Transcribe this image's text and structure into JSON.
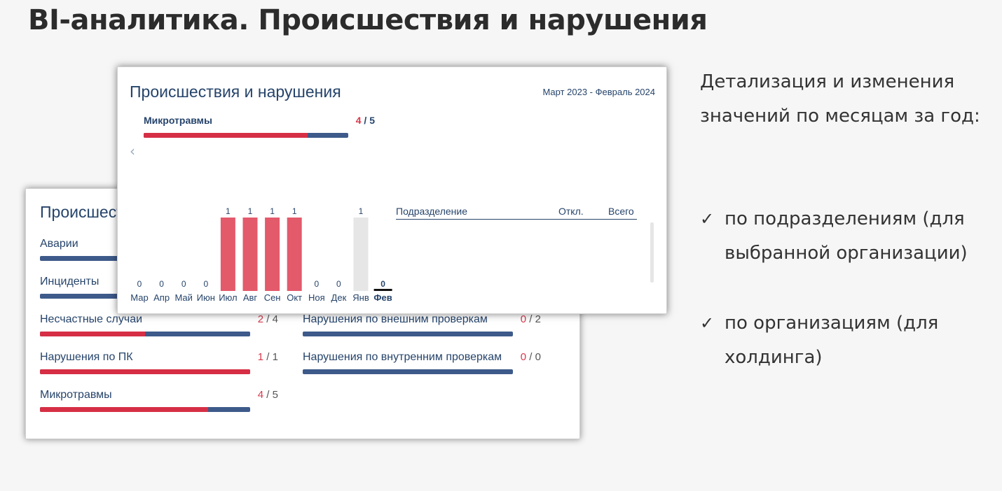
{
  "slide": {
    "title": "BI-аналитика. Происшествия и нарушения",
    "description": "Детализация и изменения значений по месяцам за год:",
    "bullets": [
      {
        "check": "✓",
        "text": "по подразделениям (для выбранной организации)"
      },
      {
        "check": "✓",
        "text": "по организациям (для холдинга)"
      }
    ]
  },
  "back_card": {
    "title": "Происшествия и нарушения",
    "metrics_left": [
      {
        "label": "Аварии"
      },
      {
        "label": "Инциденты"
      },
      {
        "label": "Несчастные случаи",
        "current": "2",
        "separator": " / ",
        "total": "4",
        "fill_fraction": 0.5
      },
      {
        "label": "Нарушения по ПК",
        "current": "1",
        "separator": " / ",
        "total": "1",
        "fill_fraction": 1.0
      },
      {
        "label": "Микротравмы",
        "current": "4",
        "separator": " / ",
        "total": "5",
        "fill_fraction": 0.8
      }
    ],
    "metrics_right": [
      {
        "label": "Нарушения по внешним проверкам",
        "current": "0",
        "separator": " / ",
        "total": "2",
        "fill_fraction": 0
      },
      {
        "label": "Нарушения по внутренним проверкам",
        "current": "0",
        "separator": " / ",
        "total": "0",
        "fill_fraction": 0
      }
    ]
  },
  "front_card": {
    "title": "Происшествия и нарушения",
    "period": "Март 2023 - Февраль 2024",
    "selected_metric": {
      "label": "Микротравмы",
      "current": "4",
      "separator": " / ",
      "total": "5",
      "fill_fraction": 0.8
    },
    "back_arrow": "‹",
    "table": {
      "columns": [
        "Подразделение",
        "Откл.",
        "Всего"
      ]
    },
    "colors": {
      "bar": "#e35a6b",
      "bar_future": "#e6e6e6",
      "label": "#26446b",
      "selected_marker": "#111111"
    }
  },
  "chart_data": {
    "type": "bar",
    "categories": [
      "Мар",
      "Апр",
      "Май",
      "Июн",
      "Июл",
      "Авг",
      "Сен",
      "Окт",
      "Ноя",
      "Дек",
      "Янв",
      "Фев"
    ],
    "values": [
      0,
      0,
      0,
      0,
      1,
      1,
      1,
      1,
      0,
      0,
      1,
      0
    ],
    "value_labels": [
      "0",
      "0",
      "0",
      "0",
      "1",
      "1",
      "1",
      "1",
      "0",
      "0",
      "1",
      "0"
    ],
    "highlighted": [
      false,
      false,
      false,
      false,
      true,
      true,
      true,
      true,
      false,
      false,
      false,
      false
    ],
    "selected_category": "Фев",
    "ylim": [
      0,
      1
    ],
    "grid": false
  }
}
